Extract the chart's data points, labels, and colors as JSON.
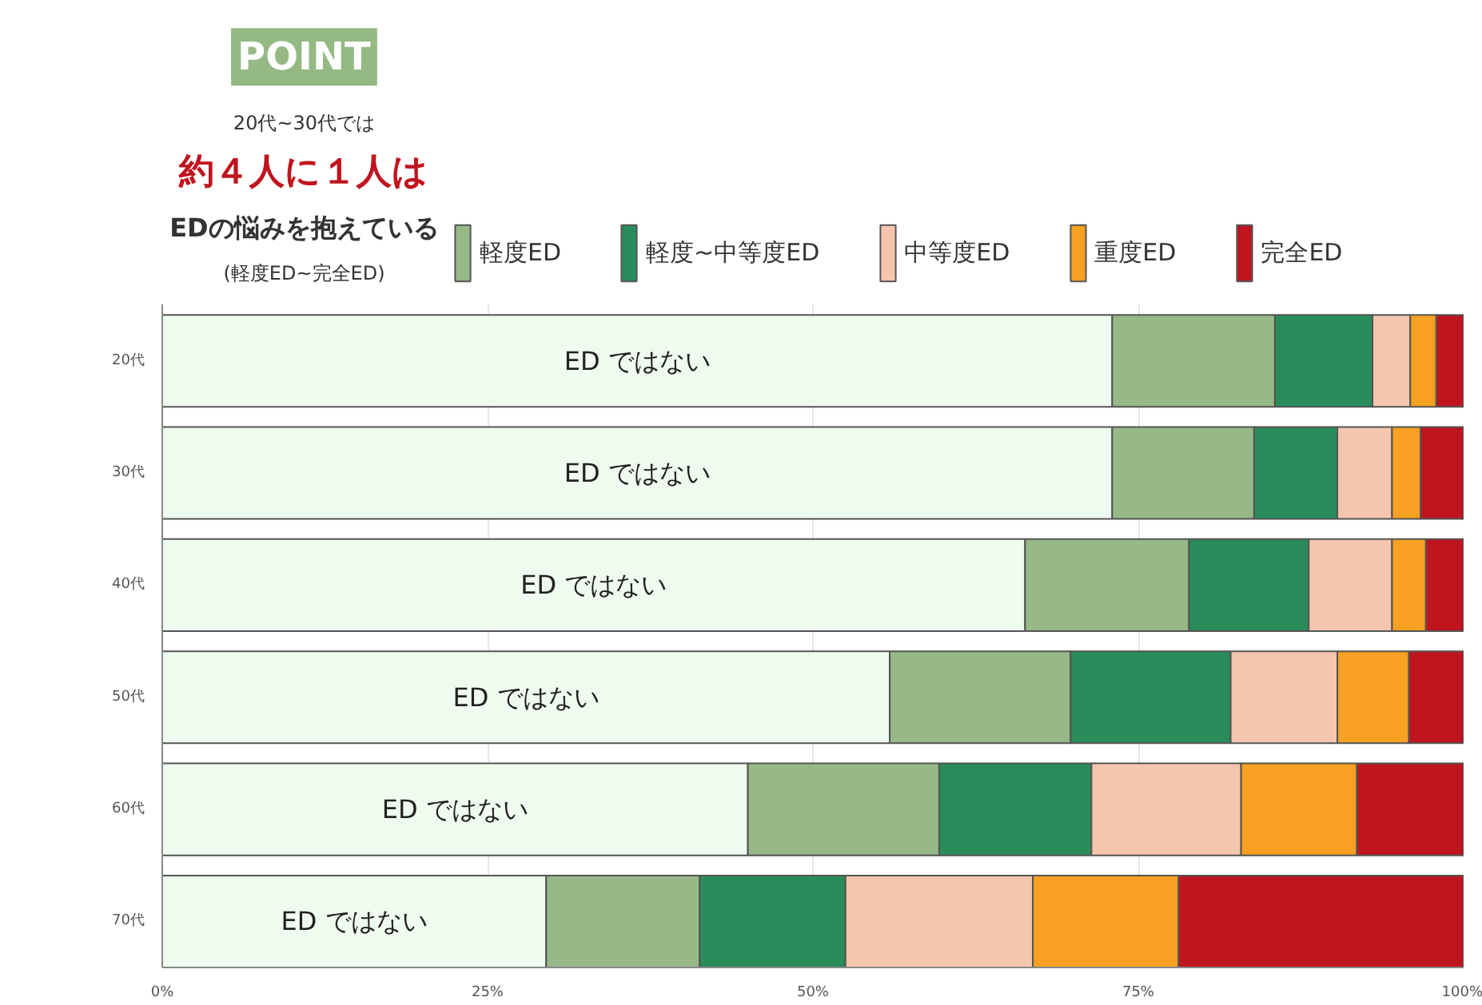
{
  "chart_data": {
    "type": "bar",
    "orientation": "horizontal",
    "stacked": true,
    "categories": [
      "20代",
      "30代",
      "40代",
      "50代",
      "60代",
      "70代"
    ],
    "series": [
      {
        "name": "ED ではない",
        "color": "#f0fbf0",
        "values": [
          73.0,
          73.0,
          66.3,
          55.9,
          45.0,
          29.5
        ]
      },
      {
        "name": "軽度ED",
        "color": "#96b987",
        "values": [
          12.5,
          10.9,
          12.6,
          13.9,
          14.7,
          11.8
        ]
      },
      {
        "name": "軽度~中等度ED",
        "color": "#2a8c5b",
        "values": [
          7.5,
          6.4,
          9.2,
          12.3,
          11.7,
          11.2
        ]
      },
      {
        "name": "中等度ED",
        "color": "#f5c6ad",
        "values": [
          2.9,
          4.2,
          6.4,
          8.2,
          11.5,
          14.4
        ]
      },
      {
        "name": "重度ED",
        "color": "#f7a021",
        "values": [
          2.0,
          2.2,
          2.6,
          5.5,
          8.9,
          11.2
        ]
      },
      {
        "name": "完全ED",
        "color": "#c0141f",
        "values": [
          2.1,
          3.3,
          2.9,
          4.2,
          8.2,
          21.9
        ]
      }
    ],
    "xlim": [
      0,
      100
    ],
    "xticks": [
      {
        "value": 0,
        "label": "0%"
      },
      {
        "value": 25,
        "label": "25%"
      },
      {
        "value": 50,
        "label": "50%"
      },
      {
        "value": 75,
        "label": "75%"
      },
      {
        "value": 100,
        "label": "100%"
      }
    ],
    "grid": "x",
    "legend": "top",
    "annotations": [
      "POINT",
      "20代~30代では",
      "約４人に１人は",
      "EDの悩みを抱えている",
      "(軽度ED~完全ED)"
    ]
  }
}
